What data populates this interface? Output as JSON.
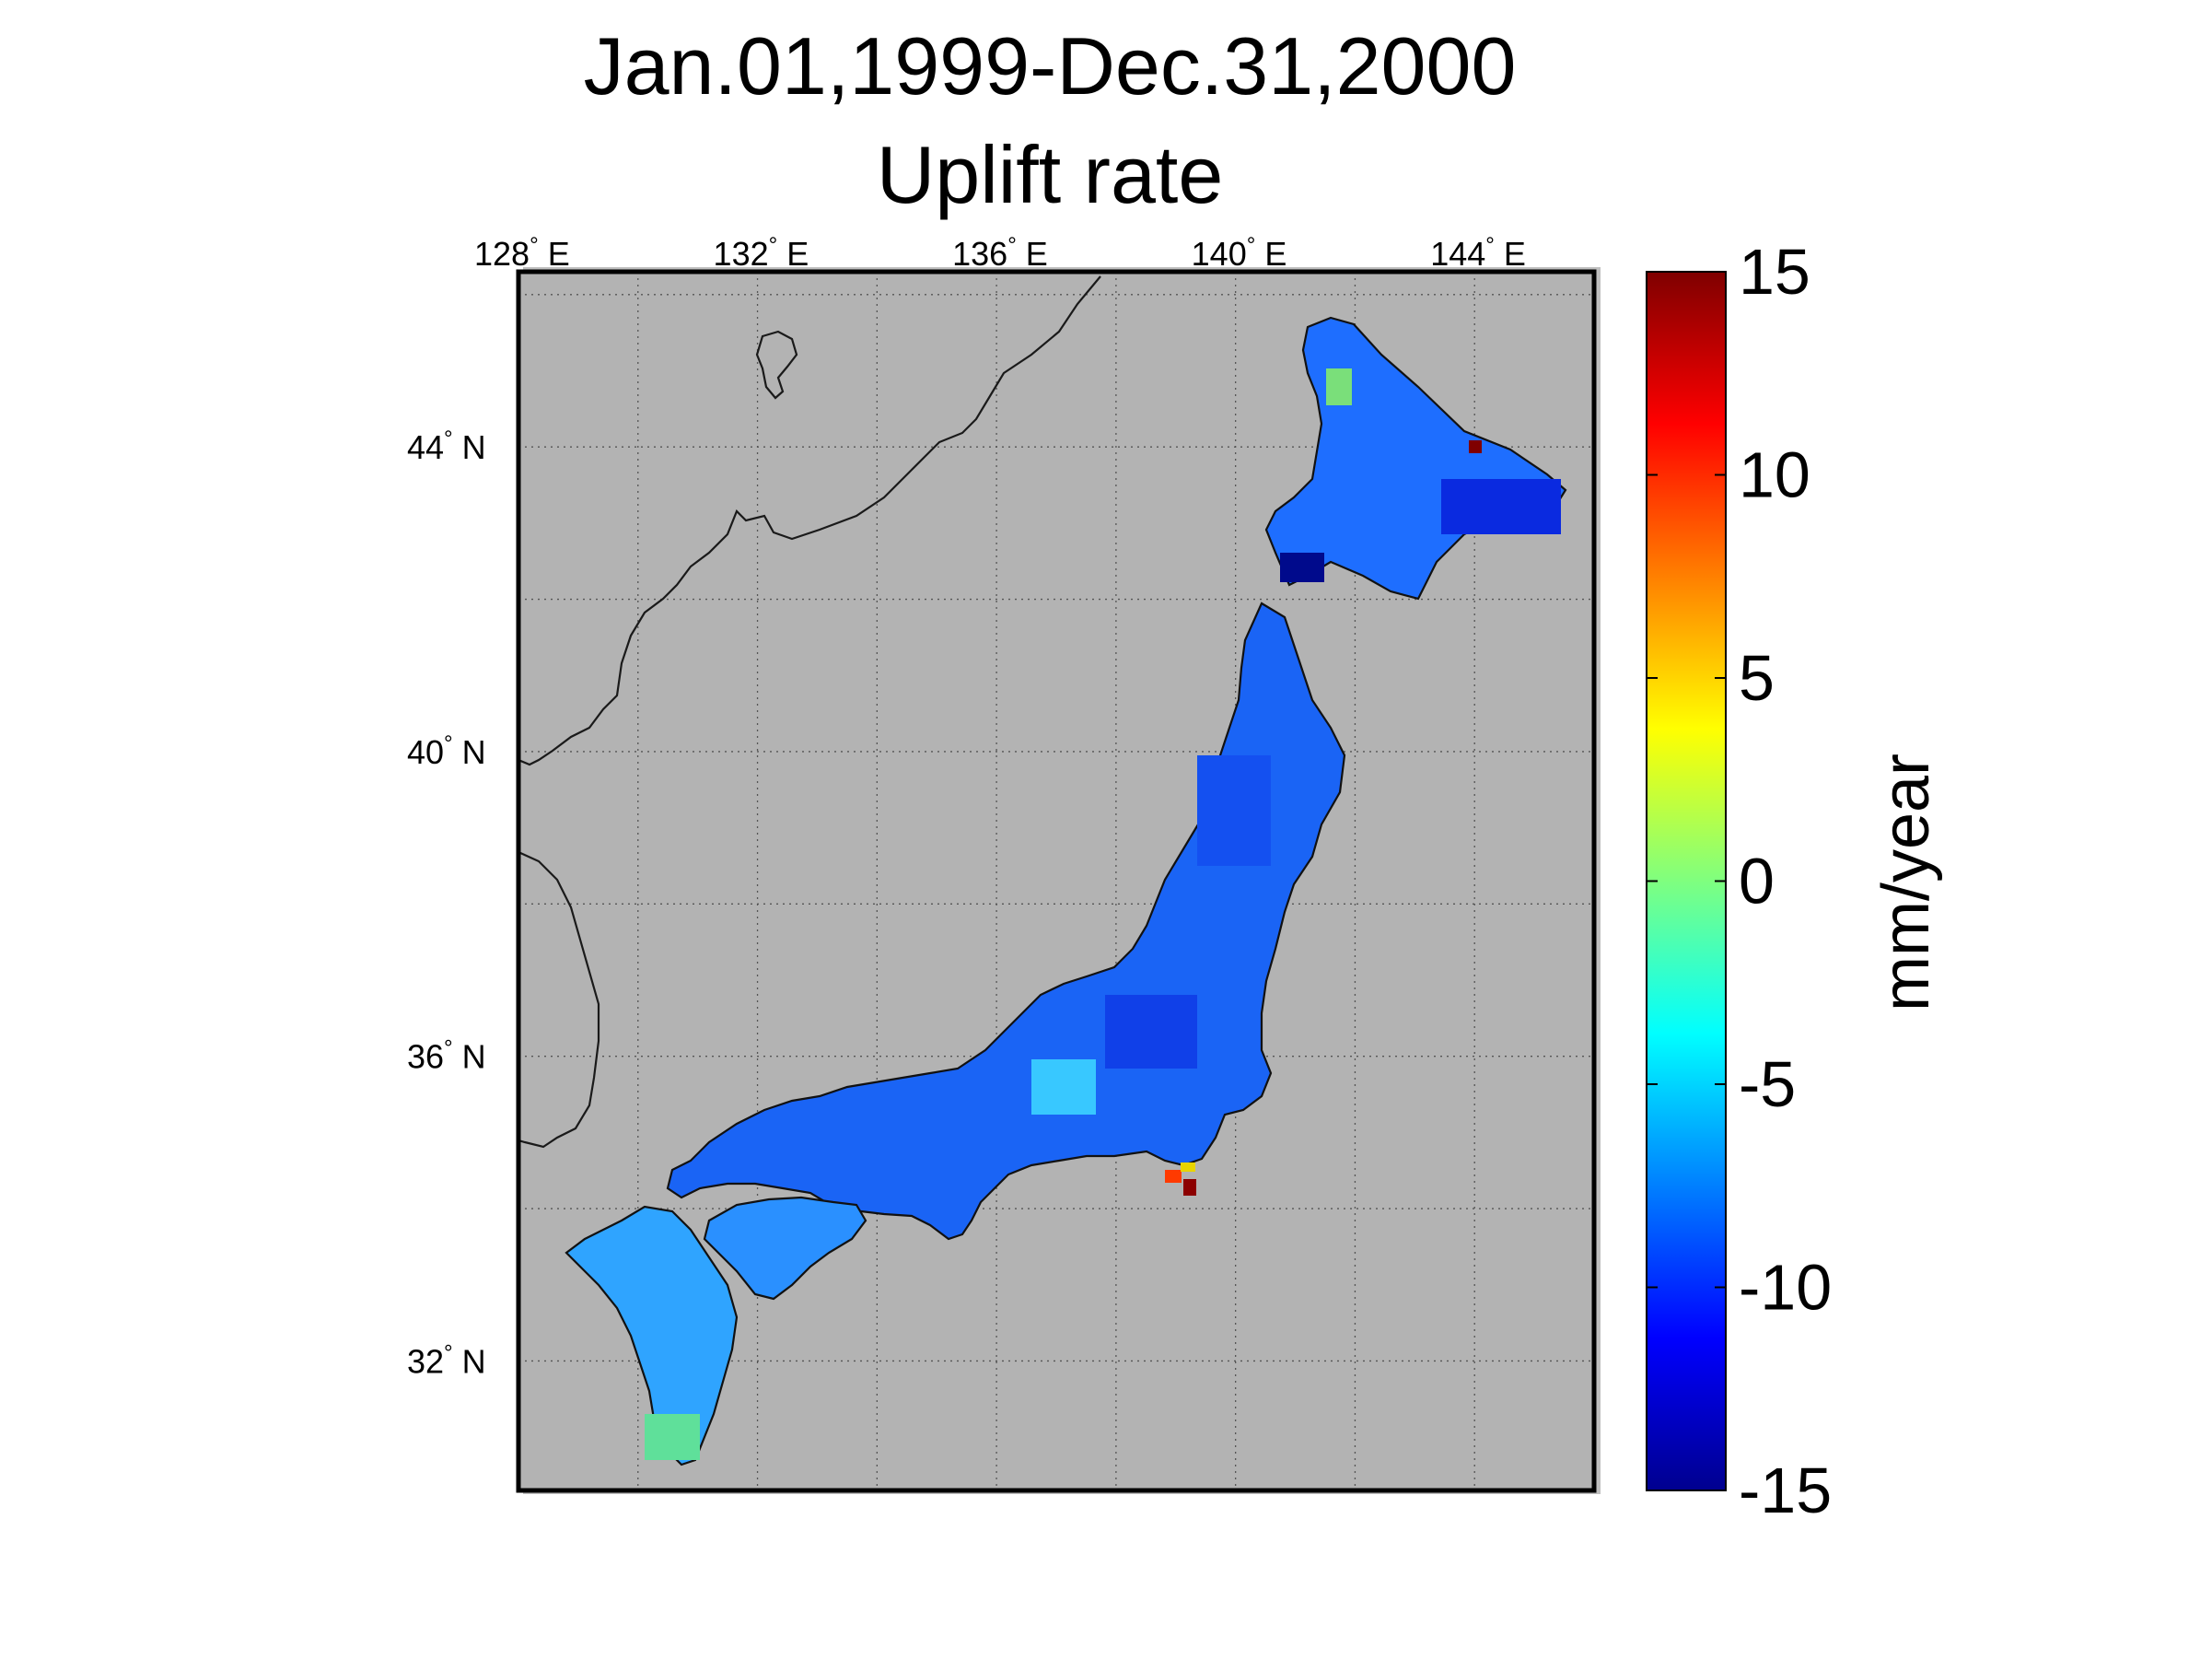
{
  "title": {
    "line1": "Jan.01,1999-Dec.31,2000",
    "line2": "Uplift rate"
  },
  "map": {
    "lon_ticks": [
      {
        "deg": "128",
        "hem": "E"
      },
      {
        "deg": "132",
        "hem": "E"
      },
      {
        "deg": "136",
        "hem": "E"
      },
      {
        "deg": "140",
        "hem": "E"
      },
      {
        "deg": "144",
        "hem": "E"
      }
    ],
    "lat_ticks": [
      {
        "deg": "44",
        "hem": "N"
      },
      {
        "deg": "40",
        "hem": "N"
      },
      {
        "deg": "36",
        "hem": "N"
      },
      {
        "deg": "32",
        "hem": "N"
      }
    ],
    "degree_symbol": "°",
    "lon_range": [
      128,
      146
    ],
    "lat_range": [
      30.3,
      46.3
    ],
    "background_color": "#b3b3b3",
    "grid": "dotted"
  },
  "colorbar": {
    "ticks": [
      "15",
      "10",
      "5",
      "0",
      "-5",
      "-10",
      "-15"
    ],
    "unit": "mm/year",
    "range": [
      -15,
      15
    ],
    "colormap": "jet"
  }
}
